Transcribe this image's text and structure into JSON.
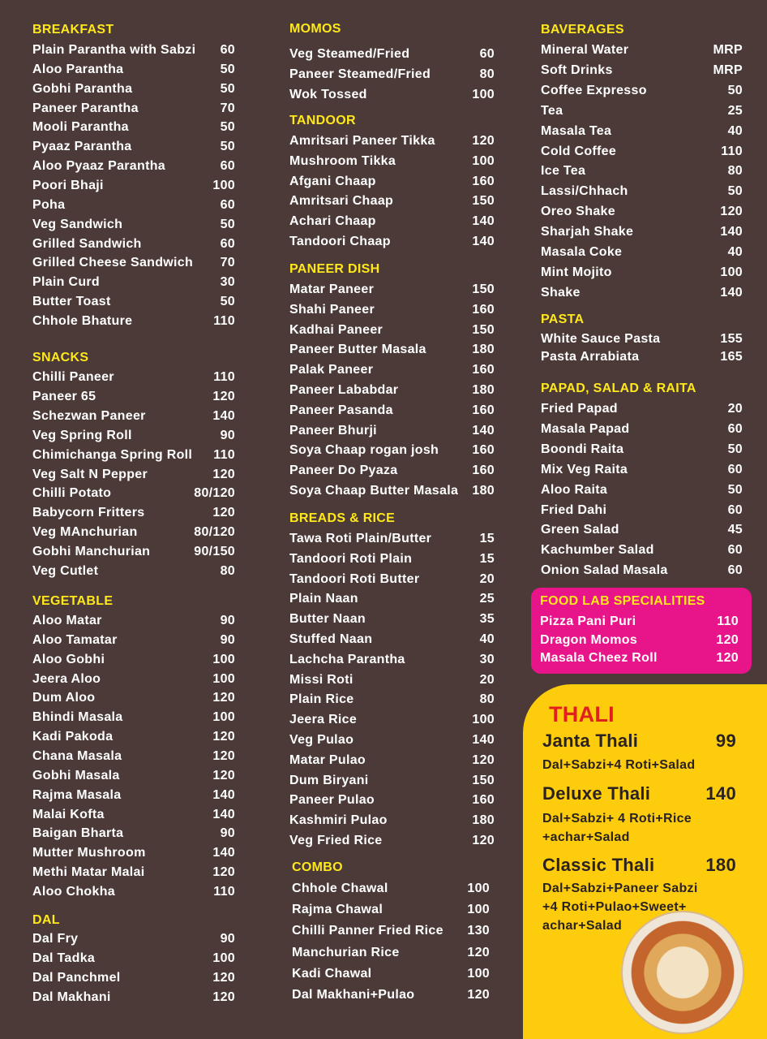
{
  "columns": [
    [
      {
        "title": "BREAKFAST",
        "items": [
          {
            "name": "Plain Parantha with Sabzi",
            "price": "60"
          },
          {
            "name": "Aloo Parantha",
            "price": "50"
          },
          {
            "name": "Gobhi Parantha",
            "price": "50"
          },
          {
            "name": "Paneer Parantha",
            "price": "70"
          },
          {
            "name": "Mooli Parantha",
            "price": "50"
          },
          {
            "name": "Pyaaz Parantha",
            "price": "50"
          },
          {
            "name": "Aloo Pyaaz Parantha",
            "price": "60"
          },
          {
            "name": "Poori Bhaji",
            "price": "100"
          },
          {
            "name": "Poha",
            "price": "60"
          },
          {
            "name": "Veg Sandwich",
            "price": "50"
          },
          {
            "name": "Grilled Sandwich",
            "price": "60"
          },
          {
            "name": "Grilled Cheese Sandwich",
            "price": "70"
          },
          {
            "name": "Plain Curd",
            "price": "30"
          },
          {
            "name": "Butter Toast",
            "price": "50"
          },
          {
            "name": "Chhole Bhature",
            "price": "110"
          }
        ]
      },
      {
        "title": "SNACKS",
        "items": [
          {
            "name": "Chilli Paneer",
            "price": "110"
          },
          {
            "name": "Paneer 65",
            "price": "120"
          },
          {
            "name": "Schezwan Paneer",
            "price": "140"
          },
          {
            "name": "Veg Spring Roll",
            "price": "90"
          },
          {
            "name": "Chimichanga Spring Roll",
            "price": "110"
          },
          {
            "name": "Veg Salt N Pepper",
            "price": "120"
          },
          {
            "name": "Chilli Potato",
            "price": "80/120"
          },
          {
            "name": "Babycorn Fritters",
            "price": "120"
          },
          {
            "name": "Veg MAnchurian",
            "price": "80/120"
          },
          {
            "name": "Gobhi Manchurian",
            "price": "90/150"
          },
          {
            "name": "Veg Cutlet",
            "price": "80"
          }
        ]
      },
      {
        "title": "VEGETABLE",
        "items": [
          {
            "name": "Aloo Matar",
            "price": "90"
          },
          {
            "name": "Aloo Tamatar",
            "price": "90"
          },
          {
            "name": "Aloo Gobhi",
            "price": "100"
          },
          {
            "name": "Jeera Aloo",
            "price": "100"
          },
          {
            "name": "Dum Aloo",
            "price": "120"
          },
          {
            "name": "Bhindi Masala",
            "price": "100"
          },
          {
            "name": "Kadi Pakoda",
            "price": "120"
          },
          {
            "name": "Chana Masala",
            "price": "120"
          },
          {
            "name": "Gobhi Masala",
            "price": "120"
          },
          {
            "name": "Rajma Masala",
            "price": "140"
          },
          {
            "name": "Malai Kofta",
            "price": "140"
          },
          {
            "name": "Baigan Bharta",
            "price": "90"
          },
          {
            "name": "Mutter Mushroom",
            "price": "140"
          },
          {
            "name": "Methi Matar Malai",
            "price": "120"
          },
          {
            "name": "Aloo Chokha",
            "price": "110"
          }
        ]
      },
      {
        "title": "DAL",
        "items": [
          {
            "name": "Dal Fry",
            "price": "90"
          },
          {
            "name": "Dal Tadka",
            "price": "100"
          },
          {
            "name": "Dal Panchmel",
            "price": "120"
          },
          {
            "name": "Dal Makhani",
            "price": "120"
          }
        ]
      }
    ],
    [
      {
        "title": "MOMOS",
        "items": [
          {
            "name": "Veg Steamed/Fried",
            "price": "60"
          },
          {
            "name": "Paneer Steamed/Fried",
            "price": "80"
          },
          {
            "name": "Wok Tossed",
            "price": "100"
          }
        ]
      },
      {
        "title": "TANDOOR",
        "items": [
          {
            "name": "Amritsari Paneer Tikka",
            "price": "120"
          },
          {
            "name": "Mushroom Tikka",
            "price": "100"
          },
          {
            "name": "Afgani Chaap",
            "price": "160"
          },
          {
            "name": "Amritsari Chaap",
            "price": "150"
          },
          {
            "name": "Achari Chaap",
            "price": "140"
          },
          {
            "name": "Tandoori Chaap",
            "price": "140"
          }
        ]
      },
      {
        "title": "PANEER DISH",
        "items": [
          {
            "name": "Matar Paneer",
            "price": "150"
          },
          {
            "name": "Shahi Paneer",
            "price": "160"
          },
          {
            "name": "Kadhai Paneer",
            "price": "150"
          },
          {
            "name": "Paneer Butter Masala",
            "price": "180"
          },
          {
            "name": "Palak Paneer",
            "price": "160"
          },
          {
            "name": "Paneer Lababdar",
            "price": "180"
          },
          {
            "name": "Paneer Pasanda",
            "price": "160"
          },
          {
            "name": "Paneer Bhurji",
            "price": "140"
          },
          {
            "name": "Soya Chaap rogan josh",
            "price": "160"
          },
          {
            "name": "Paneer Do Pyaza",
            "price": "160"
          },
          {
            "name": "Soya Chaap Butter Masala",
            "price": "180"
          }
        ]
      },
      {
        "title": "BREADS & RICE",
        "items": [
          {
            "name": "Tawa Roti Plain/Butter",
            "price": "15"
          },
          {
            "name": "Tandoori Roti Plain",
            "price": "15"
          },
          {
            "name": "Tandoori Roti Butter",
            "price": "20"
          },
          {
            "name": "Plain Naan",
            "price": "25"
          },
          {
            "name": "Butter Naan",
            "price": "35"
          },
          {
            "name": "Stuffed Naan",
            "price": "40"
          },
          {
            "name": "Lachcha Parantha",
            "price": "30"
          },
          {
            "name": "Missi Roti",
            "price": "20"
          },
          {
            "name": "Plain Rice",
            "price": "80"
          },
          {
            "name": "Jeera Rice",
            "price": "100"
          },
          {
            "name": "Veg Pulao",
            "price": "140"
          },
          {
            "name": "Matar Pulao",
            "price": "120"
          },
          {
            "name": "Dum Biryani",
            "price": "150"
          },
          {
            "name": "Paneer Pulao",
            "price": "160"
          },
          {
            "name": "Kashmiri Pulao",
            "price": "180"
          },
          {
            "name": "Veg Fried Rice",
            "price": "120"
          }
        ]
      },
      {
        "title": "COMBO",
        "items": [
          {
            "name": "Chhole Chawal",
            "price": "100"
          },
          {
            "name": "Rajma Chawal",
            "price": "100"
          },
          {
            "name": "Chilli Panner Fried Rice",
            "price": "130"
          },
          {
            "name": "Manchurian Rice",
            "price": "120"
          },
          {
            "name": "Kadi Chawal",
            "price": "100"
          },
          {
            "name": "Dal Makhani+Pulao",
            "price": "120"
          }
        ]
      }
    ],
    [
      {
        "title": "BAVERAGES",
        "items": [
          {
            "name": "Mineral Water",
            "price": "MRP"
          },
          {
            "name": "Soft Drinks",
            "price": "MRP"
          },
          {
            "name": "Coffee Expresso",
            "price": "50"
          },
          {
            "name": "Tea",
            "price": "25"
          },
          {
            "name": "Masala Tea",
            "price": "40"
          },
          {
            "name": "Cold Coffee",
            "price": "110"
          },
          {
            "name": "Ice Tea",
            "price": "80"
          },
          {
            "name": "Lassi/Chhach",
            "price": "50"
          },
          {
            "name": "Oreo Shake",
            "price": "120"
          },
          {
            "name": "Sharjah Shake",
            "price": "140"
          },
          {
            "name": "Masala Coke",
            "price": "40"
          },
          {
            "name": "Mint Mojito",
            "price": "100"
          },
          {
            "name": "Shake",
            "price": "140"
          }
        ]
      },
      {
        "title": "PASTA",
        "items": [
          {
            "name": "White Sauce Pasta",
            "price": "155"
          },
          {
            "name": "Pasta Arrabiata",
            "price": "165"
          }
        ]
      },
      {
        "title": "PAPAD, SALAD & RAITA",
        "items": [
          {
            "name": "Fried Papad",
            "price": "20"
          },
          {
            "name": "Masala Papad",
            "price": "60"
          },
          {
            "name": "Boondi Raita",
            "price": "50"
          },
          {
            "name": "Mix Veg Raita",
            "price": "60"
          },
          {
            "name": "Aloo Raita",
            "price": "50"
          },
          {
            "name": "Fried Dahi",
            "price": "60"
          },
          {
            "name": "Green Salad",
            "price": "45"
          },
          {
            "name": "Kachumber Salad",
            "price": "60"
          },
          {
            "name": "Onion Salad Masala",
            "price": "60"
          }
        ]
      }
    ]
  ],
  "specialities": {
    "title": "FOOD LAB SPECIALITIES",
    "items": [
      {
        "name": "Pizza Pani Puri",
        "price": "110"
      },
      {
        "name": "Dragon Momos",
        "price": "120"
      },
      {
        "name": "Masala Cheez Roll",
        "price": "120"
      }
    ]
  },
  "thali": {
    "title": "THALI",
    "items": [
      {
        "name": "Janta Thali",
        "price": "99",
        "description": [
          "Dal+Sabzi+4 Roti+Salad"
        ]
      },
      {
        "name": "Deluxe Thali",
        "price": "140",
        "description": [
          "Dal+Sabzi+ 4 Roti+Rice",
          "+achar+Salad"
        ]
      },
      {
        "name": "Classic Thali",
        "price": "180",
        "description": [
          "Dal+Sabzi+Paneer Sabzi",
          "+4 Roti+Pulao+Sweet+",
          "achar+Salad"
        ]
      }
    ]
  }
}
